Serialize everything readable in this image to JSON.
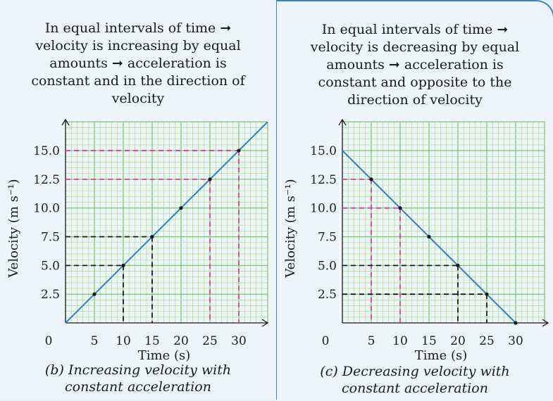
{
  "panels": [
    {
      "description": [
        "In equal intervals of time ➞",
        "velocity is increasing by equal",
        "amounts ➞ acceleration is",
        "constant and in the direction of",
        "velocity"
      ],
      "caption": [
        "(b) Increasing velocity with",
        "constant acceleration"
      ]
    },
    {
      "description": [
        "In equal intervals of time ➞",
        "velocity is decreasing by equal",
        "amounts ➞ acceleration is",
        "constant and opposite to the",
        "direction of velocity"
      ],
      "caption": [
        "(c) Decreasing velocity with",
        "constant acceleration"
      ]
    }
  ],
  "chart_data": [
    {
      "type": "line",
      "xlabel": "Time (s)",
      "ylabel": "Velocity (m s⁻¹)",
      "x_ticks": [
        "0",
        "5",
        "10",
        "15",
        "20",
        "25",
        "30"
      ],
      "y_ticks": [
        "2.5",
        "5.0",
        "7.5",
        "10.0",
        "12.5",
        "15.0"
      ],
      "xlim": [
        0,
        35
      ],
      "ylim": [
        0,
        17.5
      ],
      "grid": true,
      "series": [
        {
          "x": [
            0,
            5,
            10,
            15,
            20,
            25,
            30,
            35
          ],
          "y": [
            0,
            2.5,
            5.0,
            7.5,
            10.0,
            12.5,
            15.0,
            17.5
          ]
        }
      ],
      "markers": {
        "x": [
          5,
          10,
          15,
          20,
          25,
          30
        ],
        "y": [
          2.5,
          5.0,
          7.5,
          10.0,
          12.5,
          15.0
        ]
      },
      "guides": [
        {
          "x": 10,
          "y": 5.0,
          "color": "#1a1a1a"
        },
        {
          "x": 15,
          "y": 7.5,
          "color": "#1a1a1a"
        },
        {
          "x": 25,
          "y": 12.5,
          "color": "#e0408a"
        },
        {
          "x": 30,
          "y": 15.0,
          "color": "#e0408a"
        }
      ]
    },
    {
      "type": "line",
      "xlabel": "Time (s)",
      "ylabel": "Velocity (m s⁻¹)",
      "x_ticks": [
        "0",
        "5",
        "10",
        "15",
        "20",
        "25",
        "30"
      ],
      "y_ticks": [
        "2.5",
        "5.0",
        "7.5",
        "10.0",
        "12.5",
        "15.0"
      ],
      "xlim": [
        0,
        35
      ],
      "ylim": [
        0,
        17.5
      ],
      "grid": true,
      "series": [
        {
          "x": [
            0,
            5,
            10,
            15,
            20,
            25,
            30
          ],
          "y": [
            15.0,
            12.5,
            10.0,
            7.5,
            5.0,
            2.5,
            0
          ]
        }
      ],
      "markers": {
        "x": [
          5,
          10,
          15,
          20,
          25,
          30
        ],
        "y": [
          12.5,
          10.0,
          7.5,
          5.0,
          2.5,
          0
        ]
      },
      "guides": [
        {
          "x": 5,
          "y": 12.5,
          "color": "#e0408a"
        },
        {
          "x": 10,
          "y": 10.0,
          "color": "#e0408a"
        },
        {
          "x": 20,
          "y": 5.0,
          "color": "#1a1a1a"
        },
        {
          "x": 25,
          "y": 2.5,
          "color": "#1a1a1a"
        }
      ]
    }
  ],
  "colors": {
    "grid_minor": "#a7dc8a",
    "grid_major": "#6fc05a",
    "line": "#2f7fc0",
    "panel_border": "#3b82c4"
  }
}
